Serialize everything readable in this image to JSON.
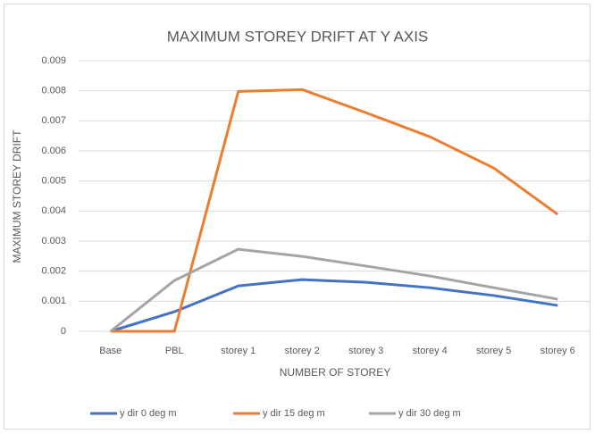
{
  "chart_data": {
    "type": "line",
    "title": "MAXIMUM STOREY DRIFT AT Y AXIS",
    "x_label": "NUMBER OF STOREY",
    "y_label": "MAXIMUM STOREY DRIFT",
    "categories": [
      "Base",
      "PBL",
      "storey 1",
      "storey 2",
      "storey 3",
      "storey 4",
      "storey 5",
      "storey 6"
    ],
    "series": [
      {
        "name": "y dir 0 deg m",
        "color": "#4472c4",
        "values": [
          0,
          0.00065,
          0.00151,
          0.00172,
          0.00163,
          0.00145,
          0.00119,
          0.00086
        ]
      },
      {
        "name": "y dir 15 deg m",
        "color": "#ed7d31",
        "values": [
          0,
          0,
          0.00798,
          0.00804,
          0.00727,
          0.00647,
          0.00543,
          0.00389
        ]
      },
      {
        "name": "y dir 30 deg m",
        "color": "#a5a5a5",
        "values": [
          0,
          0.00169,
          0.00273,
          0.00249,
          0.00217,
          0.00184,
          0.00145,
          0.00107
        ]
      }
    ],
    "ylim": [
      0,
      0.009
    ],
    "yticks": [
      0,
      0.001,
      0.002,
      0.003,
      0.004,
      0.005,
      0.006,
      0.007,
      0.008,
      0.009
    ],
    "grid": true,
    "legend": "bottom"
  }
}
